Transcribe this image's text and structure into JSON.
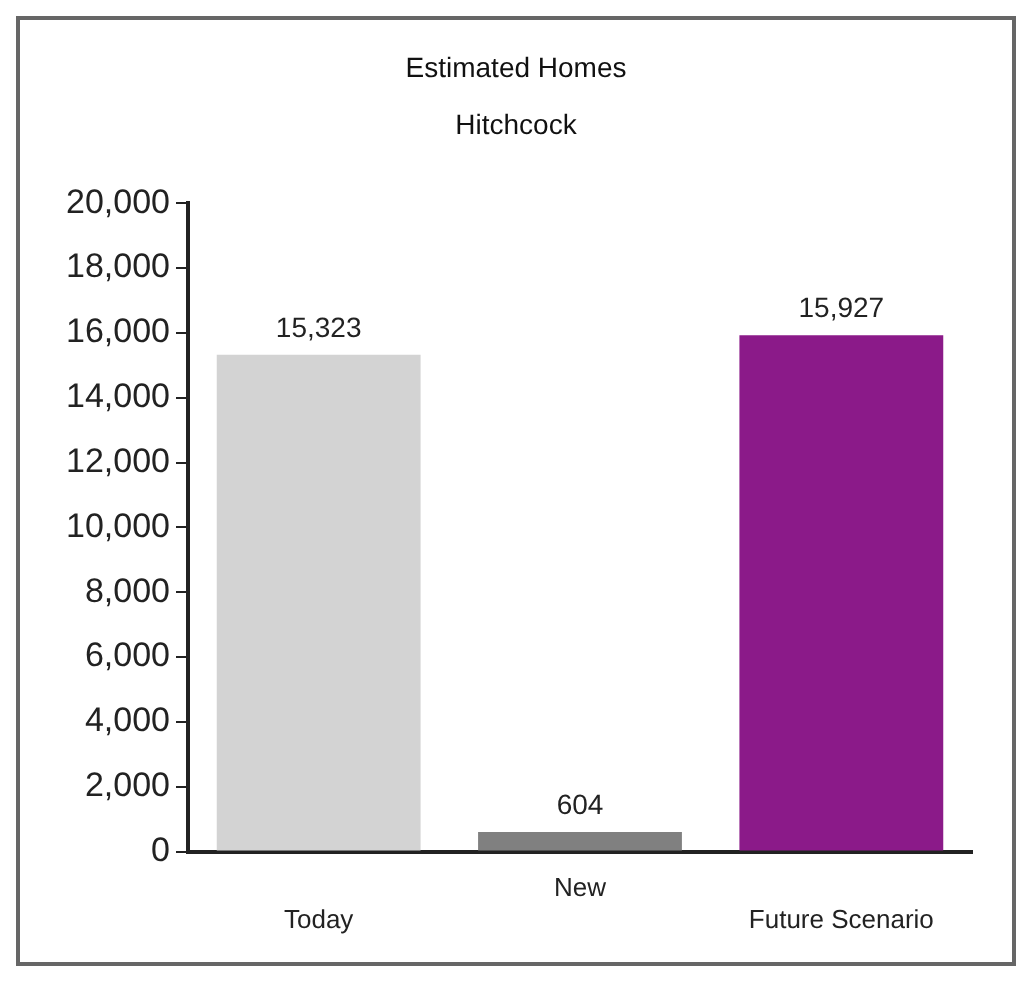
{
  "chart_data": {
    "type": "bar",
    "title": "Estimated Homes",
    "subtitle": "Hitchcock",
    "categories": [
      "Today",
      "New",
      "Future Scenario"
    ],
    "values": [
      15323,
      604,
      15927
    ],
    "colors": [
      "#d3d3d3",
      "#808080",
      "#8b1a89"
    ],
    "ylim": [
      0,
      20000
    ],
    "yticks": [
      {
        "value": 0,
        "label": "0"
      },
      {
        "value": 2000,
        "label": "2,000"
      },
      {
        "value": 4000,
        "label": "4,000"
      },
      {
        "value": 6000,
        "label": "6,000"
      },
      {
        "value": 8000,
        "label": "8,000"
      },
      {
        "value": 10000,
        "label": "10,000"
      },
      {
        "value": 12000,
        "label": "12,000"
      },
      {
        "value": 14000,
        "label": "14,000"
      },
      {
        "value": 16000,
        "label": "16,000"
      },
      {
        "value": 18000,
        "label": "18,000"
      },
      {
        "value": 20000,
        "label": "20,000"
      }
    ],
    "value_labels": [
      "15,323",
      "604",
      "15,927"
    ],
    "grid": false,
    "legend": false
  }
}
